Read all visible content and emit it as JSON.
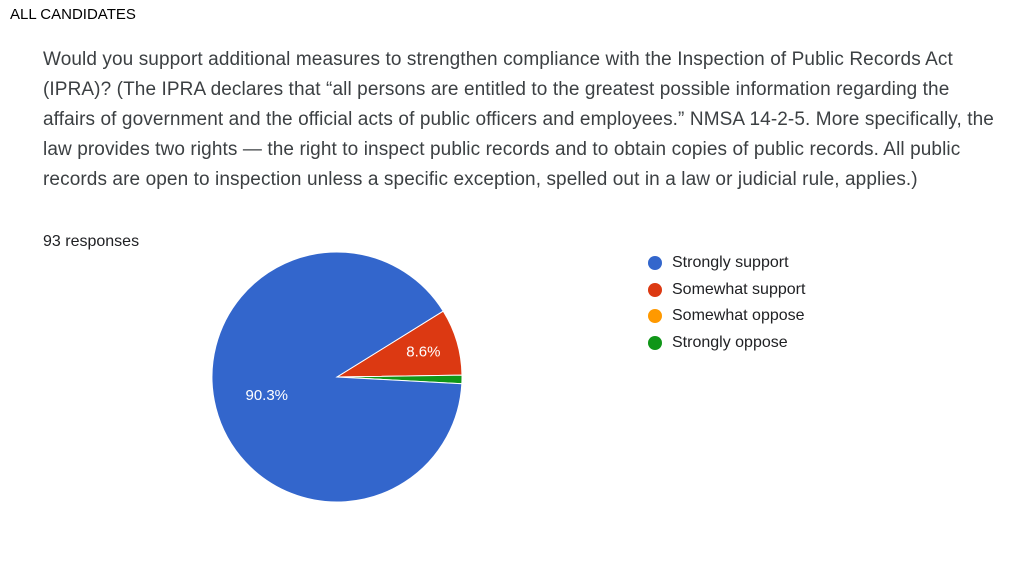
{
  "header": {
    "section_label": "ALL CANDIDATES"
  },
  "question": {
    "text": "Would you support additional measures to strengthen compliance with the Inspection of Public Records Act (IPRA)? (The IPRA declares that “all persons are entitled to the greatest possible information regarding the affairs of government and the official acts of public officers and employees.” NMSA 14-2-5. More specifically, the law provides two rights — the right to inspect public records and to obtain copies of public records. All public records are open to inspection unless a specific exception, spelled out in a law or judicial rule, applies.)"
  },
  "responses": {
    "count_text": "93 responses"
  },
  "chart_data": {
    "type": "pie",
    "title": "",
    "legend_position": "right",
    "slices": [
      {
        "label": "Strongly support",
        "percent": 90.3,
        "color": "#3366cc",
        "data_label": "90.3%"
      },
      {
        "label": "Somewhat support",
        "percent": 8.6,
        "color": "#dc3912",
        "data_label": "8.6%"
      },
      {
        "label": "Somewhat oppose",
        "percent": 0,
        "color": "#ff9900",
        "data_label": ""
      },
      {
        "label": "Strongly oppose",
        "percent": 1.1,
        "color": "#109618",
        "data_label": ""
      }
    ]
  }
}
